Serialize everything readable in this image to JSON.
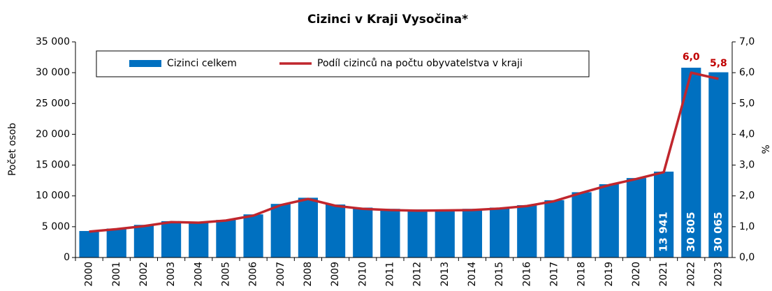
{
  "chart_data": {
    "type": "bar",
    "title": "Cizinci v Kraji Vysočina*",
    "ylabel": "Počet osob",
    "y2label": "%",
    "categories": [
      "2000",
      "2001",
      "2002",
      "2003",
      "2004",
      "2005",
      "2006",
      "2007",
      "2008",
      "2009",
      "2010",
      "2011",
      "2012",
      "2013",
      "2014",
      "2015",
      "2016",
      "2017",
      "2018",
      "2019",
      "2020",
      "2021",
      "2022",
      "2023"
    ],
    "series": [
      {
        "name": "Cizinci celkem",
        "type": "bar",
        "axis": "y",
        "color": "#0070c0",
        "values": [
          4300,
          4700,
          5300,
          5900,
          5800,
          6100,
          7000,
          8700,
          9700,
          8600,
          8100,
          7900,
          7800,
          7800,
          7900,
          8100,
          8500,
          9300,
          10600,
          11900,
          12900,
          13941,
          30805,
          30065
        ],
        "value_labels": [
          null,
          null,
          null,
          null,
          null,
          null,
          null,
          null,
          null,
          null,
          null,
          null,
          null,
          null,
          null,
          null,
          null,
          null,
          null,
          null,
          null,
          "13 941",
          "30 805",
          "30 065"
        ]
      },
      {
        "name": "Podíl cizinců na počtu obyvatelstva v kraji",
        "type": "line",
        "axis": "y2",
        "color": "#c0262d",
        "values": [
          0.84,
          0.92,
          1.02,
          1.15,
          1.13,
          1.2,
          1.36,
          1.7,
          1.9,
          1.68,
          1.58,
          1.54,
          1.52,
          1.53,
          1.54,
          1.59,
          1.67,
          1.83,
          2.1,
          2.35,
          2.55,
          2.77,
          6.0,
          5.8
        ],
        "value_labels": [
          null,
          null,
          null,
          null,
          null,
          null,
          null,
          null,
          null,
          null,
          null,
          null,
          null,
          null,
          null,
          null,
          null,
          null,
          null,
          null,
          null,
          null,
          "6,0",
          "5,8"
        ]
      }
    ],
    "ylim": [
      0,
      35000
    ],
    "yticks": [
      0,
      {
        "value": 5000,
        "label": "5 000"
      },
      {
        "value": 10000,
        "label": "10 000"
      },
      {
        "value": 15000,
        "label": "15 000"
      },
      {
        "value": 20000,
        "label": "20 000"
      },
      {
        "value": 25000,
        "label": "25 000"
      },
      {
        "value": 30000,
        "label": "30 000"
      },
      {
        "value": 35000,
        "label": "35 000"
      }
    ],
    "y2lim": [
      0,
      7
    ],
    "y2ticks": [
      {
        "value": 0,
        "label": "0,0"
      },
      {
        "value": 1,
        "label": "1,0"
      },
      {
        "value": 2,
        "label": "2,0"
      },
      {
        "value": 3,
        "label": "3,0"
      },
      {
        "value": 4,
        "label": "4,0"
      },
      {
        "value": 5,
        "label": "5,0"
      },
      {
        "value": 6,
        "label": "6,0"
      },
      {
        "value": 7,
        "label": "7,0"
      }
    ],
    "grid": false
  }
}
